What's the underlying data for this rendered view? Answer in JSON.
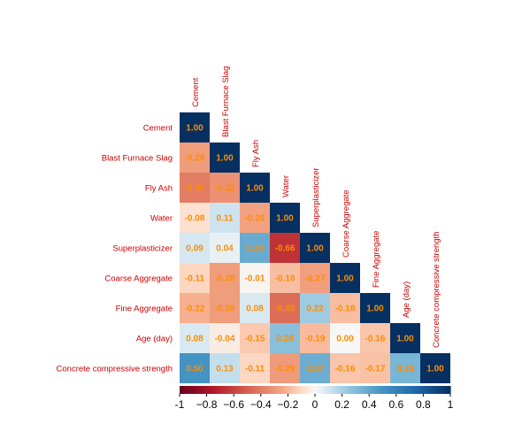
{
  "chart_data": {
    "type": "heatmap",
    "variables": [
      "Cement",
      "Blast Furnace Slag",
      "Fly Ash",
      "Water",
      "Superplasticizer",
      "Coarse Aggregate",
      "Fine Aggregate",
      "Age (day)",
      "Concrete compressive strength"
    ],
    "matrix": [
      [
        "1.00"
      ],
      [
        "-0.28",
        "1.00"
      ],
      [
        "-0.40",
        "-0.32",
        "1.00"
      ],
      [
        "-0.08",
        "0.11",
        "-0.26",
        "1.00"
      ],
      [
        "0.09",
        "0.04",
        "0.38",
        "-0.66",
        "1.00"
      ],
      [
        "-0.11",
        "-0.28",
        "-0.01",
        "-0.18",
        "-0.27",
        "1.00"
      ],
      [
        "-0.22",
        "-0.28",
        "0.08",
        "-0.45",
        "0.22",
        "-0.18",
        "1.00"
      ],
      [
        "0.08",
        "-0.04",
        "-0.15",
        "0.28",
        "-0.19",
        "0.00",
        "-0.16",
        "1.00"
      ],
      [
        "0.50",
        "0.13",
        "-0.11",
        "-0.29",
        "0.37",
        "-0.16",
        "-0.17",
        "0.33",
        "1.00"
      ]
    ],
    "colorbar": {
      "range": [
        -1,
        1
      ],
      "ticks": [
        "-1",
        "−0.8",
        "−0.6",
        "−0.4",
        "−0.2",
        "0",
        "0.2",
        "0.4",
        "0.6",
        "0.8",
        "1"
      ]
    },
    "layout": "lower-triangle",
    "colors": {
      "negative": "#67001f",
      "neutral": "#f7f7f7",
      "positive": "#053061",
      "label_text": "#cc0000",
      "value_text": "#ff8c00"
    }
  }
}
